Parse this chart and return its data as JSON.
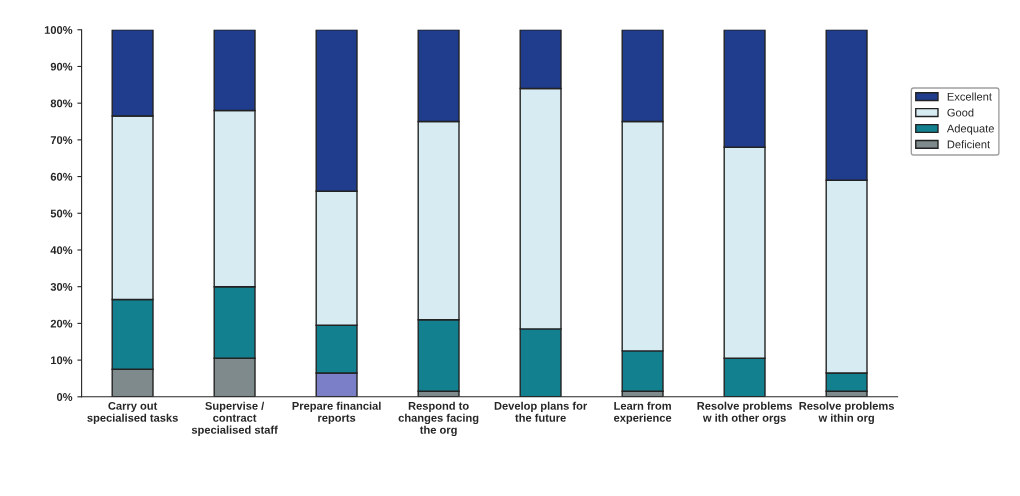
{
  "chart_data": {
    "type": "bar",
    "stacked": true,
    "categories": [
      "Carry out\nspecialised tasks",
      "Supervise /\ncontract\nspecialised staff",
      "Prepare financial\nreports",
      "Respond to\nchanges facing\nthe org",
      "Develop plans for\nthe future",
      "Learn from\nexperience",
      "Resolve problems\nw ith other orgs",
      "Resolve problems\nw ithin org"
    ],
    "series": [
      {
        "name": "Deficient",
        "color": "#7f8a8c",
        "colors": [
          "#7f8a8c",
          "#7f8a8c",
          "#7b7fc8",
          "#7f8a8c",
          "#7f8a8c",
          "#7f8a8c",
          "#7f8a8c",
          "#7f8a8c"
        ],
        "values": [
          7.5,
          10.5,
          6.5,
          1.5,
          0,
          1.5,
          0,
          1.5
        ]
      },
      {
        "name": "Adequate",
        "color": "#13808f",
        "values": [
          19,
          19.5,
          13,
          19.5,
          18.5,
          11,
          10.5,
          5
        ]
      },
      {
        "name": "Good",
        "color": "#d7ecf2",
        "values": [
          50,
          48,
          36.5,
          54,
          65.5,
          62.5,
          57.5,
          52.5
        ]
      },
      {
        "name": "Excellent",
        "color": "#1f3d8c",
        "values": [
          23.5,
          22,
          44,
          25,
          16,
          25,
          32,
          41
        ]
      }
    ],
    "ylim": [
      0,
      100
    ],
    "yticks": [
      {
        "value": 0,
        "label": "0%"
      },
      {
        "value": 10,
        "label": "10%"
      },
      {
        "value": 20,
        "label": "20%"
      },
      {
        "value": 30,
        "label": "30%"
      },
      {
        "value": 40,
        "label": "40%"
      },
      {
        "value": 50,
        "label": "50%"
      },
      {
        "value": 60,
        "label": "60%"
      },
      {
        "value": 70,
        "label": "70%"
      },
      {
        "value": 80,
        "label": "80%"
      },
      {
        "value": 90,
        "label": "90%"
      },
      {
        "value": 100,
        "label": "100%"
      }
    ],
    "grid": false,
    "legend": "right"
  }
}
